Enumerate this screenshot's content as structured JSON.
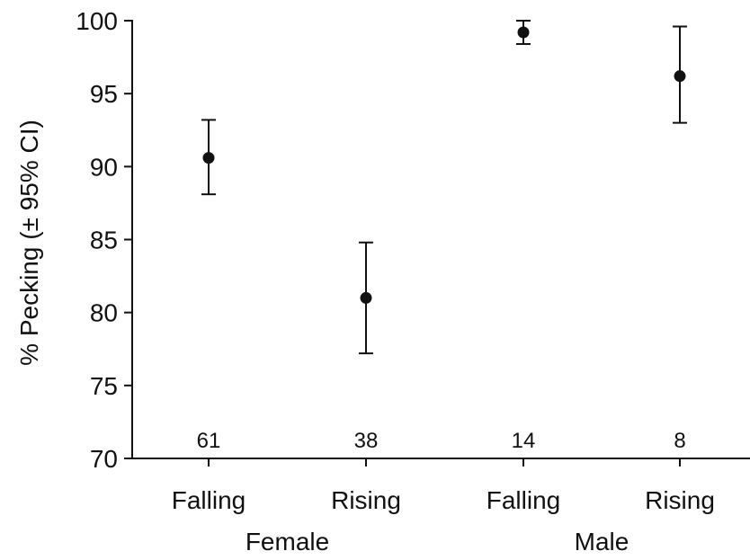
{
  "chart_data": {
    "type": "scatter",
    "ylabel": "% Pecking (± 95% CI)",
    "ylim": [
      70,
      100
    ],
    "yticks": [
      70,
      75,
      80,
      85,
      90,
      95,
      100
    ],
    "groups": [
      "Female",
      "Male"
    ],
    "categories": [
      "Falling",
      "Rising",
      "Falling",
      "Rising"
    ],
    "category_group": [
      "Female",
      "Female",
      "Male",
      "Male"
    ],
    "values": [
      90.6,
      81.0,
      99.2,
      96.2
    ],
    "ci_low": [
      88.1,
      77.2,
      98.4,
      93.0
    ],
    "ci_high": [
      93.2,
      84.8,
      100.0,
      99.6
    ],
    "n": [
      "61",
      "38",
      "14",
      "8"
    ],
    "grid": false,
    "marker_color": "#111111"
  }
}
